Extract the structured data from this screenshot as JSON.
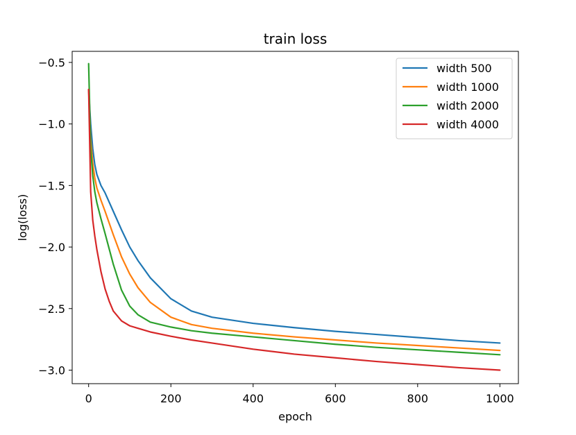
{
  "chart_data": {
    "type": "line",
    "title": "train loss",
    "xlabel": "epoch",
    "ylabel": "log(loss)",
    "xlim": [
      -40,
      1045
    ],
    "ylim": [
      -3.11,
      -0.41
    ],
    "xticks": [
      0,
      200,
      400,
      600,
      800,
      1000
    ],
    "yticks": [
      -3.0,
      -2.5,
      -2.0,
      -1.5,
      -1.0,
      -0.5
    ],
    "xtick_labels": [
      "0",
      "200",
      "400",
      "600",
      "800",
      "1000"
    ],
    "ytick_labels": [
      "−3.0",
      "−2.5",
      "−2.0",
      "−1.5",
      "−1.0",
      "−0.5"
    ],
    "grid": false,
    "legend_position": "top-right",
    "series": [
      {
        "name": "width 500",
        "color": "#1f77b4",
        "x": [
          0,
          5,
          10,
          15,
          20,
          30,
          40,
          60,
          80,
          100,
          120,
          150,
          200,
          250,
          300,
          400,
          500,
          600,
          700,
          800,
          900,
          1000
        ],
        "y": [
          -0.72,
          -1.0,
          -1.2,
          -1.33,
          -1.41,
          -1.5,
          -1.56,
          -1.71,
          -1.86,
          -2.0,
          -2.11,
          -2.25,
          -2.42,
          -2.52,
          -2.57,
          -2.62,
          -2.655,
          -2.685,
          -2.71,
          -2.735,
          -2.76,
          -2.78
        ]
      },
      {
        "name": "width 1000",
        "color": "#ff7f0e",
        "x": [
          0,
          5,
          10,
          15,
          20,
          30,
          40,
          60,
          80,
          100,
          120,
          150,
          200,
          250,
          300,
          400,
          500,
          600,
          700,
          800,
          900,
          1000
        ],
        "y": [
          -0.72,
          -1.12,
          -1.32,
          -1.44,
          -1.52,
          -1.62,
          -1.71,
          -1.9,
          -2.08,
          -2.22,
          -2.33,
          -2.45,
          -2.57,
          -2.63,
          -2.66,
          -2.7,
          -2.73,
          -2.755,
          -2.78,
          -2.8,
          -2.82,
          -2.84
        ]
      },
      {
        "name": "width 2000",
        "color": "#2ca02c",
        "x": [
          0,
          5,
          10,
          15,
          20,
          30,
          40,
          60,
          80,
          100,
          120,
          150,
          200,
          250,
          300,
          400,
          500,
          600,
          700,
          800,
          900,
          1000
        ],
        "y": [
          -0.51,
          -1.2,
          -1.42,
          -1.55,
          -1.64,
          -1.77,
          -1.89,
          -2.14,
          -2.35,
          -2.48,
          -2.55,
          -2.61,
          -2.65,
          -2.68,
          -2.7,
          -2.73,
          -2.76,
          -2.79,
          -2.815,
          -2.835,
          -2.855,
          -2.875
        ]
      },
      {
        "name": "width 4000",
        "color": "#d62728",
        "x": [
          0,
          5,
          10,
          15,
          20,
          30,
          40,
          50,
          60,
          80,
          100,
          120,
          150,
          200,
          250,
          300,
          400,
          500,
          600,
          700,
          800,
          900,
          1000
        ],
        "y": [
          -0.72,
          -1.55,
          -1.78,
          -1.91,
          -2.02,
          -2.2,
          -2.34,
          -2.44,
          -2.52,
          -2.6,
          -2.64,
          -2.66,
          -2.69,
          -2.725,
          -2.755,
          -2.78,
          -2.83,
          -2.87,
          -2.9,
          -2.93,
          -2.955,
          -2.98,
          -3.0
        ]
      }
    ]
  }
}
